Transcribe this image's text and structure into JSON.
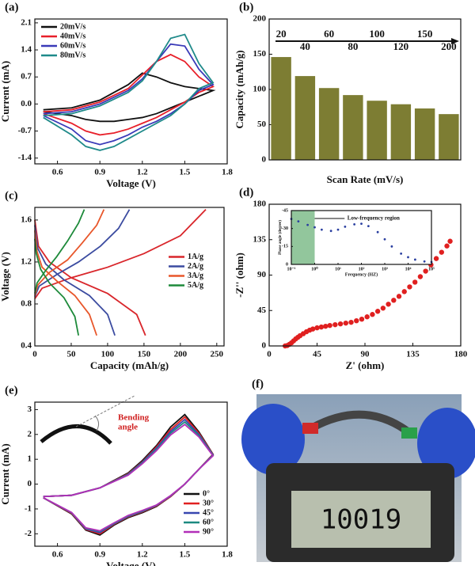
{
  "chart_data": [
    {
      "panel": "(a)",
      "type": "line",
      "xlabel": "Voltage (V)",
      "ylabel": "Current (mA)",
      "xlim": [
        0.44,
        1.8
      ],
      "ylim": [
        -1.55,
        2.2
      ],
      "xticks": [
        0.6,
        0.9,
        1.2,
        1.5,
        1.8
      ],
      "yticks": [
        -1.4,
        -0.7,
        {
          "value": 0,
          "label": "0.0"
        },
        0.7,
        1.4,
        2.1
      ],
      "legend": "upper left",
      "x": [
        0.5,
        0.7,
        0.9,
        1.1,
        1.2,
        1.3,
        1.4,
        1.5,
        1.6,
        1.7,
        1.6,
        1.5,
        1.4,
        1.3,
        1.2,
        1.1,
        1.0,
        0.9,
        0.8,
        0.7,
        0.5
      ],
      "series": [
        {
          "name": "20mV/s",
          "color": "#111111",
          "values": [
            -0.15,
            -0.1,
            0.1,
            0.5,
            0.8,
            0.7,
            0.55,
            0.45,
            0.4,
            0.35,
            0.2,
            0.05,
            -0.1,
            -0.25,
            -0.35,
            -0.4,
            -0.45,
            -0.45,
            -0.4,
            -0.3,
            -0.2
          ]
        },
        {
          "name": "40mV/s",
          "color": "#e8202a",
          "values": [
            -0.2,
            -0.15,
            0.05,
            0.4,
            0.75,
            1.1,
            1.28,
            1.1,
            0.7,
            0.45,
            0.3,
            0.05,
            -0.15,
            -0.35,
            -0.5,
            -0.65,
            -0.75,
            -0.8,
            -0.7,
            -0.5,
            -0.25
          ]
        },
        {
          "name": "60mV/s",
          "color": "#3a3ab8",
          "values": [
            -0.25,
            -0.2,
            0.0,
            0.35,
            0.65,
            1.1,
            1.55,
            1.5,
            0.9,
            0.5,
            0.35,
            0.0,
            -0.25,
            -0.45,
            -0.6,
            -0.8,
            -0.95,
            -1.05,
            -0.95,
            -0.65,
            -0.3
          ]
        },
        {
          "name": "80mV/s",
          "color": "#1f8a8a",
          "values": [
            -0.3,
            -0.25,
            -0.05,
            0.3,
            0.6,
            1.1,
            1.7,
            1.8,
            1.05,
            0.55,
            0.4,
            0.0,
            -0.3,
            -0.5,
            -0.7,
            -0.9,
            -1.1,
            -1.2,
            -1.1,
            -0.8,
            -0.35
          ]
        }
      ]
    },
    {
      "panel": "(b)",
      "type": "bar",
      "xlabel": "Scan Rate (mV/s)",
      "ylabel": "Capacity (mAh/g)",
      "ylim": [
        0,
        200
      ],
      "yticks": [
        0,
        50,
        100,
        150,
        200
      ],
      "color": "#7d7d33",
      "categories": [
        "20",
        "40",
        "60",
        "80",
        "100",
        "120",
        "150",
        "200"
      ],
      "values": [
        146,
        119,
        102,
        92,
        84,
        79,
        73,
        65
      ]
    },
    {
      "panel": "(c)",
      "type": "line",
      "xlabel": "Capacity (mAh/g)",
      "ylabel": "Voltage (V)",
      "xlim": [
        0,
        260
      ],
      "ylim": [
        0.4,
        1.72
      ],
      "xticks": [
        0,
        50,
        100,
        150,
        200,
        250
      ],
      "yticks": [
        0.4,
        0.8,
        1.2,
        1.6
      ],
      "legend": "center right",
      "series": [
        {
          "name": "1A/g",
          "color": "#d9262b",
          "x": [
            0,
            10,
            50,
            100,
            150,
            200,
            235,
            null,
            0,
            5,
            20,
            50,
            100,
            140,
            152
          ],
          "values": [
            0.85,
            0.95,
            1.05,
            1.15,
            1.28,
            1.45,
            1.7,
            null,
            1.6,
            1.35,
            1.2,
            1.05,
            0.9,
            0.7,
            0.5
          ]
        },
        {
          "name": "2A/g",
          "color": "#3b4ba0",
          "x": [
            0,
            6,
            30,
            60,
            90,
            115,
            130,
            null,
            0,
            4,
            15,
            40,
            75,
            100,
            110
          ],
          "values": [
            0.87,
            0.97,
            1.08,
            1.2,
            1.35,
            1.52,
            1.7,
            null,
            1.55,
            1.33,
            1.18,
            1.03,
            0.88,
            0.7,
            0.5
          ]
        },
        {
          "name": "3A/g",
          "color": "#e8562a",
          "x": [
            0,
            4,
            20,
            45,
            65,
            85,
            95,
            null,
            0,
            3,
            10,
            30,
            55,
            75,
            85
          ],
          "values": [
            0.88,
            0.98,
            1.1,
            1.22,
            1.38,
            1.55,
            1.7,
            null,
            1.5,
            1.3,
            1.15,
            1.02,
            0.88,
            0.7,
            0.5
          ]
        },
        {
          "name": "5A/g",
          "color": "#1d8a3a",
          "x": [
            0,
            3,
            15,
            30,
            45,
            60,
            68,
            null,
            0,
            2,
            8,
            20,
            40,
            55,
            60
          ],
          "values": [
            0.9,
            1.0,
            1.12,
            1.25,
            1.4,
            1.57,
            1.7,
            null,
            1.42,
            1.28,
            1.13,
            1.0,
            0.86,
            0.68,
            0.5
          ]
        }
      ]
    },
    {
      "panel": "(d)",
      "type": "scatter",
      "xlabel": "Z' (ohm)",
      "ylabel": "-Z'' (ohm)",
      "xlim": [
        0,
        180
      ],
      "ylim": [
        0,
        180
      ],
      "xticks": [
        0,
        45,
        90,
        135,
        180
      ],
      "yticks": [
        0,
        45,
        90,
        135,
        180
      ],
      "color": "#e02020",
      "x": [
        15,
        17,
        19,
        21,
        23,
        25,
        27,
        29,
        32,
        35,
        38,
        41,
        45,
        49,
        53,
        57,
        62,
        67,
        72,
        77,
        82,
        87,
        92,
        97,
        102,
        107,
        112,
        117,
        122,
        127,
        132,
        137,
        142,
        147,
        152,
        157,
        162,
        167,
        170
      ],
      "values": [
        0,
        0.5,
        2,
        4,
        6.5,
        9,
        11,
        13,
        15.5,
        18,
        20,
        21.5,
        23,
        24,
        25,
        26,
        27,
        28,
        29,
        30,
        32,
        34,
        37,
        40,
        44,
        48,
        53,
        58,
        63,
        69,
        75,
        81,
        88,
        95,
        103,
        111,
        119,
        127,
        133
      ]
    },
    {
      "type": "scatter",
      "xscale": "log",
      "annotation": "Low-frequency region",
      "xlabel": "Frequency (HZ)",
      "ylabel": "Phase angle (degree)",
      "xlim": [
        0.1,
        100000
      ],
      "ylim": [
        0,
        -45
      ],
      "xticks": [
        {
          "value": 0.1,
          "label": "10⁻¹"
        },
        {
          "value": 1,
          "label": "10⁰"
        },
        {
          "value": 10,
          "label": "10¹"
        },
        {
          "value": 100,
          "label": "10²"
        },
        {
          "value": 1000,
          "label": "10³"
        },
        {
          "value": 10000,
          "label": "10⁴"
        },
        {
          "value": 100000,
          "label": "10⁵"
        }
      ],
      "yticks": [
        -45,
        -30,
        -15,
        0
      ],
      "color": "#2a3fa0",
      "highlight": [
        0.1,
        1
      ],
      "highlight_color": "#4aa05a",
      "x": [
        0.1,
        0.2,
        0.5,
        1,
        2,
        5,
        10,
        20,
        50,
        100,
        200,
        500,
        1000,
        2000,
        5000,
        10000,
        20000,
        50000,
        100000
      ],
      "values": [
        -38,
        -36,
        -33,
        -31,
        -29,
        -28,
        -29,
        -31.5,
        -33.5,
        -34,
        -32,
        -27,
        -21,
        -15,
        -9,
        -6,
        -4,
        -2.5,
        -2
      ]
    },
    {
      "panel": "(e)",
      "type": "line",
      "xlabel": "Voltage (V)",
      "ylabel": "Current (mA)",
      "xlim": [
        0.44,
        1.8
      ],
      "ylim": [
        -2.5,
        3.3
      ],
      "xticks": [
        0.6,
        0.9,
        1.2,
        1.5,
        1.8
      ],
      "yticks": [
        -2,
        -1,
        0,
        1,
        2,
        3
      ],
      "legend": "lower right",
      "annotation": [
        "Bending",
        "angle"
      ],
      "x": [
        0.5,
        0.7,
        0.9,
        1.1,
        1.2,
        1.3,
        1.4,
        1.5,
        1.6,
        1.7,
        1.6,
        1.5,
        1.4,
        1.3,
        1.2,
        1.1,
        1.0,
        0.9,
        0.8,
        0.7,
        0.5
      ],
      "series": [
        {
          "name": "0°",
          "color": "#111111",
          "values": [
            -0.5,
            -0.45,
            -0.15,
            0.45,
            0.95,
            1.55,
            2.3,
            2.8,
            2.1,
            1.2,
            0.6,
            0.0,
            -0.5,
            -0.9,
            -1.15,
            -1.35,
            -1.65,
            -2.05,
            -1.85,
            -1.2,
            -0.55
          ]
        },
        {
          "name": "30°",
          "color": "#e02020",
          "values": [
            -0.5,
            -0.45,
            -0.15,
            0.42,
            0.9,
            1.5,
            2.2,
            2.7,
            2.05,
            1.2,
            0.6,
            0.0,
            -0.5,
            -0.88,
            -1.12,
            -1.32,
            -1.62,
            -2.0,
            -1.82,
            -1.18,
            -0.55
          ]
        },
        {
          "name": "45°",
          "color": "#3846b0",
          "values": [
            -0.5,
            -0.45,
            -0.15,
            0.4,
            0.88,
            1.45,
            2.12,
            2.6,
            2.0,
            1.18,
            0.6,
            0.0,
            -0.48,
            -0.86,
            -1.1,
            -1.3,
            -1.6,
            -1.95,
            -1.8,
            -1.16,
            -0.55
          ]
        },
        {
          "name": "60°",
          "color": "#1c8a80",
          "values": [
            -0.5,
            -0.45,
            -0.15,
            0.38,
            0.85,
            1.4,
            2.05,
            2.5,
            1.95,
            1.16,
            0.6,
            0.0,
            -0.47,
            -0.85,
            -1.08,
            -1.28,
            -1.58,
            -1.9,
            -1.78,
            -1.15,
            -0.55
          ]
        },
        {
          "name": "90°",
          "color": "#b22fb8",
          "values": [
            -0.5,
            -0.45,
            -0.15,
            0.36,
            0.82,
            1.35,
            1.98,
            2.4,
            1.9,
            1.14,
            0.6,
            0.0,
            -0.46,
            -0.84,
            -1.06,
            -1.26,
            -1.56,
            -1.88,
            -1.76,
            -1.14,
            -0.55
          ]
        }
      ]
    }
  ],
  "photo": {
    "panel": "(f)",
    "display": "10019"
  }
}
